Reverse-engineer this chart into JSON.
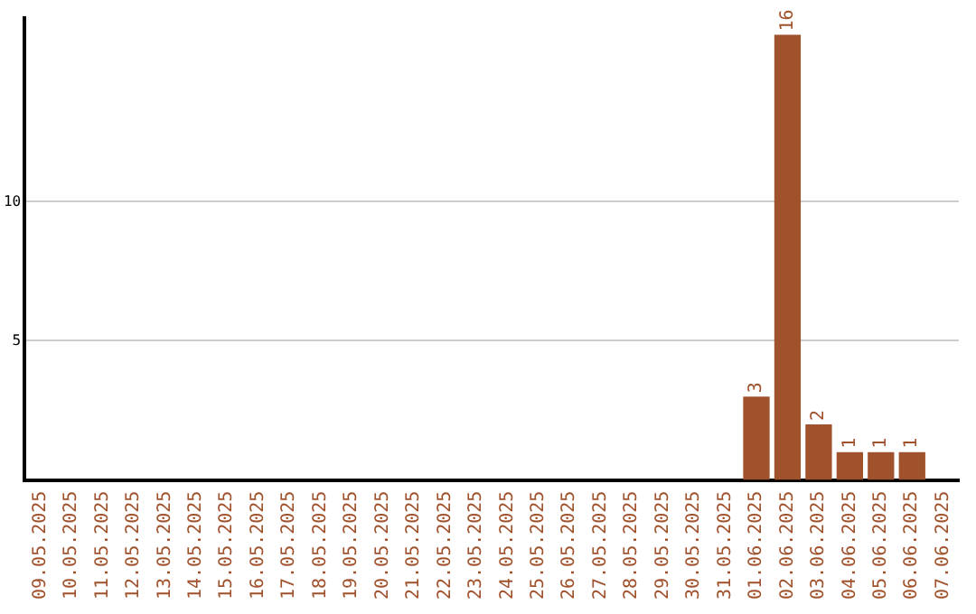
{
  "chart_data": {
    "type": "bar",
    "categories": [
      "09.05.2025",
      "10.05.2025",
      "11.05.2025",
      "12.05.2025",
      "13.05.2025",
      "14.05.2025",
      "15.05.2025",
      "16.05.2025",
      "17.05.2025",
      "18.05.2025",
      "19.05.2025",
      "20.05.2025",
      "21.05.2025",
      "22.05.2025",
      "23.05.2025",
      "24.05.2025",
      "25.05.2025",
      "26.05.2025",
      "27.05.2025",
      "28.05.2025",
      "29.05.2025",
      "30.05.2025",
      "31.05.2025",
      "01.06.2025",
      "02.06.2025",
      "03.06.2025",
      "04.06.2025",
      "05.06.2025",
      "06.06.2025",
      "07.06.2025"
    ],
    "values": [
      0,
      0,
      0,
      0,
      0,
      0,
      0,
      0,
      0,
      0,
      0,
      0,
      0,
      0,
      0,
      0,
      0,
      0,
      0,
      0,
      0,
      0,
      0,
      3,
      16,
      2,
      1,
      1,
      1,
      0
    ],
    "value_labels": [
      null,
      null,
      null,
      null,
      null,
      null,
      null,
      null,
      null,
      null,
      null,
      null,
      null,
      null,
      null,
      null,
      null,
      null,
      null,
      null,
      null,
      null,
      null,
      "3",
      "16",
      "2",
      "1",
      "1",
      "1",
      null
    ],
    "color": "#a0522d",
    "ylim": [
      0,
      16.6
    ],
    "yticks": [
      5,
      10
    ],
    "grid": "y",
    "legend": false
  }
}
